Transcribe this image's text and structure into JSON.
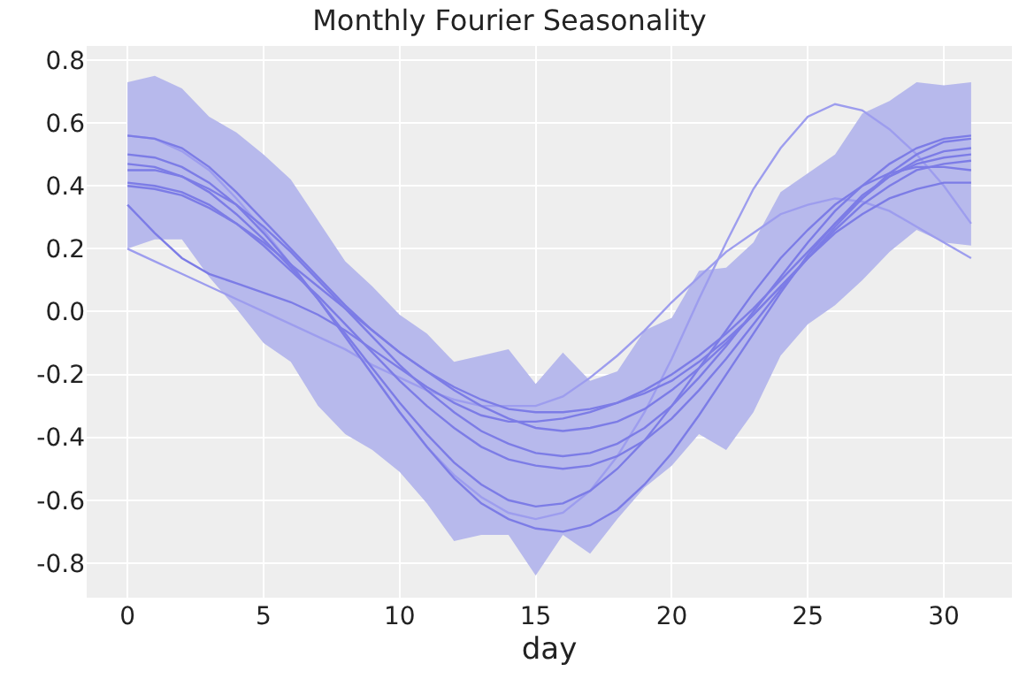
{
  "chart_data": {
    "type": "line",
    "title": "Monthly Fourier Seasonality",
    "xlabel": "day",
    "grid": true,
    "marker": "none",
    "line_style": "solid",
    "x": [
      0,
      1,
      2,
      3,
      4,
      5,
      6,
      7,
      8,
      9,
      10,
      11,
      12,
      13,
      14,
      15,
      16,
      17,
      18,
      19,
      20,
      21,
      22,
      23,
      24,
      25,
      26,
      27,
      28,
      29,
      30,
      31
    ],
    "xlim": [
      -1.5,
      32.5
    ],
    "xticks": [
      0,
      5,
      10,
      15,
      20,
      25,
      30
    ],
    "ylim": [
      -0.91,
      0.845
    ],
    "yticks": [
      -0.8,
      -0.6,
      -0.4,
      -0.2,
      {
        "value": 0,
        "label": "0.0"
      },
      0.2,
      0.4,
      0.6,
      0.8
    ],
    "series": [
      {
        "type": "area",
        "color": "#b7b9ec",
        "values": [
          null,
          null,
          null,
          null,
          null,
          null,
          null,
          null,
          null,
          null,
          null,
          null,
          null,
          null,
          null,
          null,
          null,
          null,
          null,
          null,
          null,
          null,
          null,
          null,
          null,
          null,
          null,
          null,
          null,
          null,
          null,
          null
        ],
        "lower": [
          0.2,
          0.23,
          0.23,
          0.11,
          0.01,
          -0.1,
          -0.16,
          -0.3,
          -0.39,
          -0.44,
          -0.51,
          -0.61,
          -0.73,
          -0.71,
          -0.71,
          -0.84,
          -0.71,
          -0.77,
          -0.66,
          -0.56,
          -0.49,
          -0.39,
          -0.44,
          -0.32,
          -0.14,
          -0.04,
          0.02,
          0.1,
          0.19,
          0.26,
          0.22,
          0.21
        ],
        "upper": [
          0.73,
          0.75,
          0.71,
          0.62,
          0.57,
          0.5,
          0.42,
          0.29,
          0.16,
          0.08,
          -0.01,
          -0.07,
          -0.16,
          -0.14,
          -0.12,
          -0.23,
          -0.13,
          -0.22,
          -0.19,
          -0.06,
          -0.02,
          0.13,
          0.14,
          0.22,
          0.38,
          0.44,
          0.5,
          0.63,
          0.67,
          0.73,
          0.72,
          0.73
        ]
      },
      {
        "color": "#9d9dee",
        "values": [
          0.2,
          0.16,
          0.12,
          0.08,
          0.04,
          0.0,
          -0.04,
          -0.08,
          -0.12,
          -0.17,
          -0.21,
          -0.25,
          -0.28,
          -0.3,
          -0.3,
          -0.3,
          -0.27,
          -0.21,
          -0.14,
          -0.06,
          0.03,
          0.11,
          0.19,
          0.25,
          0.31,
          0.34,
          0.36,
          0.35,
          0.32,
          0.27,
          0.22,
          0.17
        ]
      },
      {
        "color": "#9d9dee",
        "values": [
          0.56,
          0.55,
          0.51,
          0.45,
          0.36,
          0.26,
          0.15,
          0.04,
          -0.08,
          -0.2,
          -0.32,
          -0.43,
          -0.52,
          -0.59,
          -0.64,
          -0.66,
          -0.64,
          -0.57,
          -0.46,
          -0.32,
          -0.15,
          0.04,
          0.22,
          0.39,
          0.52,
          0.62,
          0.66,
          0.64,
          0.58,
          0.5,
          0.4,
          0.28
        ]
      },
      {
        "color": "#7c7ce6",
        "values": [
          0.5,
          0.49,
          0.46,
          0.41,
          0.34,
          0.25,
          0.15,
          0.04,
          -0.08,
          -0.2,
          -0.32,
          -0.43,
          -0.53,
          -0.61,
          -0.66,
          -0.69,
          -0.7,
          -0.68,
          -0.63,
          -0.55,
          -0.45,
          -0.33,
          -0.2,
          -0.07,
          0.06,
          0.18,
          0.28,
          0.37,
          0.43,
          0.47,
          0.49,
          0.5
        ]
      },
      {
        "color": "#7c7ce6",
        "values": [
          0.47,
          0.46,
          0.43,
          0.38,
          0.31,
          0.23,
          0.14,
          0.04,
          -0.07,
          -0.18,
          -0.29,
          -0.39,
          -0.48,
          -0.55,
          -0.6,
          -0.62,
          -0.61,
          -0.57,
          -0.5,
          -0.41,
          -0.3,
          -0.18,
          -0.06,
          0.06,
          0.17,
          0.26,
          0.34,
          0.4,
          0.44,
          0.46,
          0.46,
          0.45
        ]
      },
      {
        "color": "#7c7ce6",
        "values": [
          0.41,
          0.4,
          0.38,
          0.34,
          0.28,
          0.21,
          0.13,
          0.05,
          -0.04,
          -0.13,
          -0.22,
          -0.3,
          -0.37,
          -0.43,
          -0.47,
          -0.49,
          -0.5,
          -0.49,
          -0.46,
          -0.41,
          -0.34,
          -0.25,
          -0.15,
          -0.04,
          0.07,
          0.17,
          0.26,
          0.34,
          0.4,
          0.45,
          0.47,
          0.48
        ]
      },
      {
        "color": "#7c7ce6",
        "values": [
          0.45,
          0.45,
          0.43,
          0.39,
          0.34,
          0.27,
          0.19,
          0.1,
          0.01,
          -0.08,
          -0.17,
          -0.25,
          -0.32,
          -0.38,
          -0.42,
          -0.45,
          -0.46,
          -0.45,
          -0.42,
          -0.37,
          -0.3,
          -0.21,
          -0.11,
          0.0,
          0.11,
          0.22,
          0.32,
          0.4,
          0.47,
          0.52,
          0.55,
          0.56
        ]
      },
      {
        "color": "#7c7ce6",
        "values": [
          0.4,
          0.39,
          0.37,
          0.33,
          0.28,
          0.22,
          0.15,
          0.08,
          0.01,
          -0.06,
          -0.13,
          -0.19,
          -0.25,
          -0.3,
          -0.34,
          -0.37,
          -0.38,
          -0.37,
          -0.35,
          -0.31,
          -0.25,
          -0.18,
          -0.1,
          -0.01,
          0.08,
          0.17,
          0.25,
          0.31,
          0.36,
          0.39,
          0.41,
          0.41
        ]
      },
      {
        "color": "#7c7ce6",
        "values": [
          0.34,
          0.25,
          0.17,
          0.12,
          0.09,
          0.06,
          0.03,
          -0.01,
          -0.06,
          -0.12,
          -0.18,
          -0.24,
          -0.29,
          -0.33,
          -0.35,
          -0.35,
          -0.34,
          -0.32,
          -0.29,
          -0.25,
          -0.2,
          -0.14,
          -0.07,
          0.01,
          0.1,
          0.19,
          0.28,
          0.36,
          0.43,
          0.48,
          0.51,
          0.52
        ]
      },
      {
        "color": "#7c7ce6",
        "values": [
          0.56,
          0.55,
          0.52,
          0.46,
          0.38,
          0.29,
          0.2,
          0.11,
          0.02,
          -0.06,
          -0.13,
          -0.19,
          -0.24,
          -0.28,
          -0.31,
          -0.32,
          -0.32,
          -0.31,
          -0.29,
          -0.26,
          -0.22,
          -0.16,
          -0.09,
          -0.01,
          0.08,
          0.17,
          0.27,
          0.36,
          0.44,
          0.5,
          0.54,
          0.55
        ]
      }
    ]
  }
}
